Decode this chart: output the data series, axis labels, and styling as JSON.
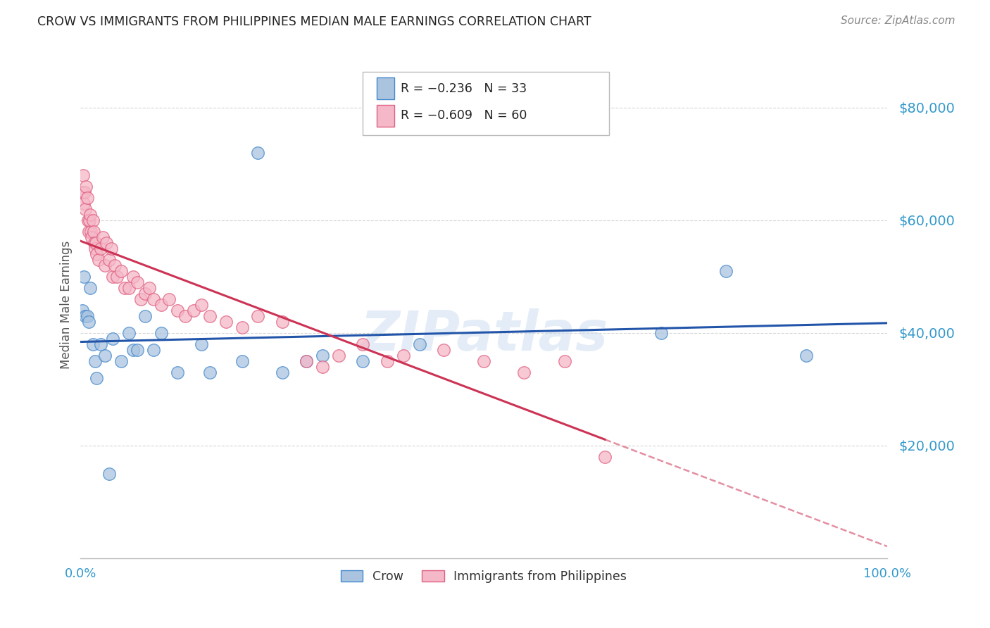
{
  "title": "CROW VS IMMIGRANTS FROM PHILIPPINES MEDIAN MALE EARNINGS CORRELATION CHART",
  "source": "Source: ZipAtlas.com",
  "ylabel": "Median Male Earnings",
  "watermark": "ZIPatlas",
  "x_min": 0.0,
  "x_max": 1.0,
  "y_min": 0,
  "y_max": 90000,
  "y_ticks": [
    20000,
    40000,
    60000,
    80000
  ],
  "y_tick_labels": [
    "$20,000",
    "$40,000",
    "$60,000",
    "$80,000"
  ],
  "x_tick_labels": [
    "0.0%",
    "100.0%"
  ],
  "crow_R": -0.236,
  "crow_N": 33,
  "phil_R": -0.609,
  "phil_N": 60,
  "crow_color": "#aac4e0",
  "crow_edge_color": "#4488cc",
  "crow_line_color": "#2255aa",
  "phil_color": "#f5b8c8",
  "phil_edge_color": "#e06080",
  "phil_line_color": "#cc3355",
  "background_color": "#ffffff",
  "grid_color": "#cccccc",
  "title_color": "#222222",
  "axis_label_color": "#3399cc",
  "crow_x": [
    0.002,
    0.004,
    0.006,
    0.008,
    0.01,
    0.012,
    0.015,
    0.018,
    0.02,
    0.025,
    0.03,
    0.035,
    0.04,
    0.05,
    0.06,
    0.065,
    0.07,
    0.08,
    0.09,
    0.1,
    0.12,
    0.15,
    0.16,
    0.2,
    0.22,
    0.25,
    0.28,
    0.3,
    0.35,
    0.42,
    0.72,
    0.8,
    0.9
  ],
  "crow_y": [
    44000,
    50000,
    43000,
    43000,
    42000,
    48000,
    38000,
    35000,
    32000,
    38000,
    36000,
    15000,
    39000,
    35000,
    40000,
    37000,
    37000,
    43000,
    37000,
    40000,
    33000,
    38000,
    33000,
    35000,
    72000,
    33000,
    35000,
    36000,
    35000,
    38000,
    40000,
    51000,
    36000
  ],
  "phil_x": [
    0.002,
    0.003,
    0.004,
    0.005,
    0.006,
    0.007,
    0.008,
    0.009,
    0.01,
    0.011,
    0.012,
    0.013,
    0.014,
    0.015,
    0.016,
    0.017,
    0.018,
    0.019,
    0.02,
    0.022,
    0.025,
    0.028,
    0.03,
    0.032,
    0.035,
    0.038,
    0.04,
    0.042,
    0.045,
    0.05,
    0.055,
    0.06,
    0.065,
    0.07,
    0.075,
    0.08,
    0.085,
    0.09,
    0.1,
    0.11,
    0.12,
    0.13,
    0.14,
    0.15,
    0.16,
    0.18,
    0.2,
    0.22,
    0.25,
    0.28,
    0.3,
    0.32,
    0.35,
    0.38,
    0.4,
    0.45,
    0.5,
    0.55,
    0.6,
    0.65
  ],
  "phil_y": [
    65000,
    68000,
    63000,
    65000,
    62000,
    66000,
    64000,
    60000,
    58000,
    60000,
    61000,
    58000,
    57000,
    60000,
    58000,
    56000,
    55000,
    56000,
    54000,
    53000,
    55000,
    57000,
    52000,
    56000,
    53000,
    55000,
    50000,
    52000,
    50000,
    51000,
    48000,
    48000,
    50000,
    49000,
    46000,
    47000,
    48000,
    46000,
    45000,
    46000,
    44000,
    43000,
    44000,
    45000,
    43000,
    42000,
    41000,
    43000,
    42000,
    35000,
    34000,
    36000,
    38000,
    35000,
    36000,
    37000,
    35000,
    33000,
    35000,
    18000
  ],
  "legend_crow_text": "R = −0.236   N = 33",
  "legend_phil_text": "R = −0.609   N = 60",
  "legend_crow_label": "Crow",
  "legend_phil_label": "Immigrants from Philippines"
}
